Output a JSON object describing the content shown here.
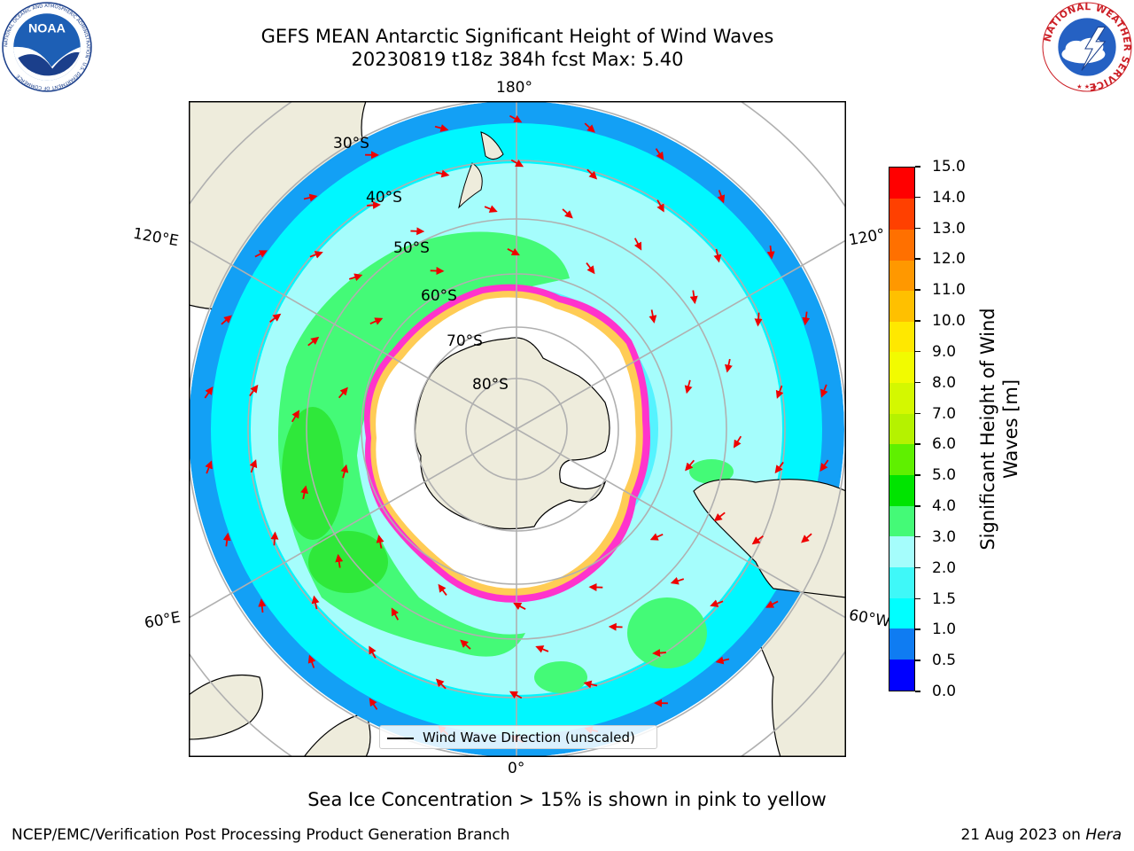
{
  "header": {
    "title_line1": "GEFS MEAN Antarctic Significant Height of Wind Waves",
    "title_line2": "20230819 t18z 384h fcst   Max: 5.40"
  },
  "logos": {
    "left": "noaa-logo",
    "left_text": "NOAA",
    "left_ring_text": "NATIONAL OCEANIC AND ATMOSPHERIC ADMINISTRATION · U.S. DEPARTMENT OF COMMERCE",
    "right": "national-weather-service-logo",
    "right_ring_text": "NATIONAL WEATHER SERVICE"
  },
  "map": {
    "projection": "south-polar-stereographic",
    "lon_labels": [
      "180°",
      "120°E",
      "120°",
      "60°E",
      "60°W",
      "0°"
    ],
    "lat_labels": [
      "30°S",
      "40°S",
      "50°S",
      "60°S",
      "70°S",
      "80°S"
    ],
    "legend_label": "Wind Wave Direction (unscaled)",
    "colors": {
      "land": "#eeecdc",
      "sea_ice_region": "#ffffff",
      "sea_ice_edge": [
        "#ff33cc",
        "#ffaa33",
        "#ffee55"
      ],
      "arrow": "#ee0000"
    }
  },
  "colorbar": {
    "label": "Significant Height of Wind Waves [m]",
    "label_line1": "Significant Height of Wind",
    "label_line2": "Waves [m]",
    "ticks": [
      "0.0",
      "0.5",
      "1.0",
      "1.5",
      "2.0",
      "3.0",
      "4.0",
      "5.0",
      "6.0",
      "7.0",
      "8.0",
      "9.0",
      "10.0",
      "11.0",
      "12.0",
      "13.0",
      "14.0",
      "15.0"
    ],
    "colors": [
      "#0000ff",
      "#0f7cf2",
      "#00ffff",
      "#3ff8f8",
      "#a5fdfc",
      "#44fa77",
      "#00e400",
      "#5ff000",
      "#b5f200",
      "#d4f800",
      "#f2fb00",
      "#ffe800",
      "#ffc000",
      "#ff9800",
      "#ff7000",
      "#ff4000",
      "#ff0000"
    ]
  },
  "footnote": "Sea Ice Concentration > 15% is shown in pink to yellow",
  "footer": {
    "left": "NCEP/EMC/Verification Post Processing Product Generation Branch",
    "right_date": "21 Aug 2023 on ",
    "right_host": "Hera"
  }
}
